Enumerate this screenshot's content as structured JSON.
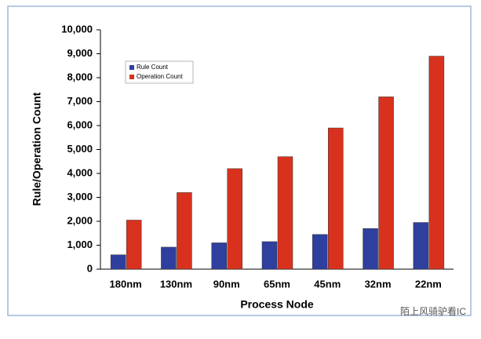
{
  "chart_data": {
    "type": "bar",
    "x_label": "Process Node",
    "y_label": "Rule/Operation Count",
    "categories": [
      "180nm",
      "130nm",
      "90nm",
      "65nm",
      "45nm",
      "32nm",
      "22nm"
    ],
    "series": [
      {
        "name": "Rule Count",
        "color": "#2f3f9e",
        "values": [
          600,
          920,
          1100,
          1150,
          1450,
          1700,
          1950
        ]
      },
      {
        "name": "Operation Count",
        "color": "#d8321e",
        "values": [
          2050,
          3200,
          4200,
          4700,
          5900,
          7200,
          8900
        ]
      }
    ],
    "ylim": [
      0,
      10000
    ],
    "yticks": [
      0,
      {
        "value": 1000,
        "label": "1,000"
      },
      {
        "value": 2000,
        "label": "2,000"
      },
      {
        "value": 3000,
        "label": "3,000"
      },
      {
        "value": 4000,
        "label": "4,000"
      },
      {
        "value": 5000,
        "label": "5,000"
      },
      {
        "value": 6000,
        "label": "6,000"
      },
      {
        "value": 7000,
        "label": "7,000"
      },
      {
        "value": 8000,
        "label": "8,000"
      },
      {
        "value": 9000,
        "label": "9,000"
      },
      {
        "value": 10000,
        "label": "10,000"
      }
    ],
    "legend": "upper left",
    "annotation": "陌上风骑驴看IC"
  }
}
